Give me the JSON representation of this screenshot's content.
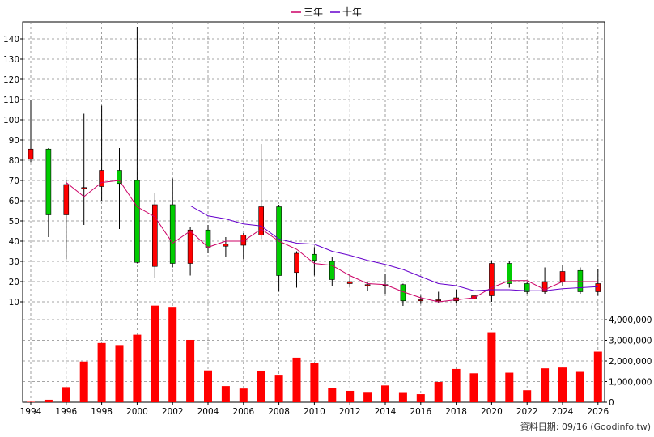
{
  "legend": [
    {
      "label": "三年",
      "color": "#cc0066"
    },
    {
      "label": "十年",
      "color": "#6600cc"
    }
  ],
  "credit": "資料日期: 09/16 (Goodinfo.tw)",
  "chart_data": {
    "type": "candlestick+volume",
    "x_ticks": [
      "1994",
      "1996",
      "1998",
      "2000",
      "2002",
      "2004",
      "2006",
      "2008",
      "2010",
      "2012",
      "2014",
      "2016",
      "2018",
      "2020",
      "2022",
      "2024",
      "2026"
    ],
    "price_axis": {
      "ticks": [
        10,
        20,
        30,
        40,
        50,
        60,
        70,
        80,
        90,
        100,
        110,
        120,
        130,
        140
      ],
      "range": [
        0,
        148
      ]
    },
    "volume_axis": {
      "ticks": [
        0,
        1000000,
        2000000,
        3000000,
        4000000
      ],
      "labels": [
        "0",
        "1,000,000",
        "2,000,000",
        "3,000,000",
        "4,000,000"
      ],
      "range": [
        0,
        4600000
      ]
    },
    "grid": true,
    "legend_position": "top-center",
    "candles": [
      {
        "year": 1994,
        "open": 80.5,
        "close": 85.5,
        "high": 110,
        "low": 79,
        "color": "red"
      },
      {
        "year": 1995,
        "open": 85.5,
        "close": 53,
        "high": 86,
        "low": 42,
        "color": "green"
      },
      {
        "year": 1996,
        "open": 53,
        "close": 68,
        "high": 70,
        "low": 31,
        "color": "red"
      },
      {
        "year": 1997,
        "open": 66,
        "close": 66.5,
        "high": 103,
        "low": 48,
        "color": "red"
      },
      {
        "year": 1998,
        "open": 67,
        "close": 75,
        "high": 107,
        "low": 60,
        "color": "red"
      },
      {
        "year": 1999,
        "open": 75,
        "close": 68.5,
        "high": 86,
        "low": 46,
        "color": "green"
      },
      {
        "year": 2000,
        "open": 70,
        "close": 29.5,
        "high": 146,
        "low": 29,
        "color": "green"
      },
      {
        "year": 2001,
        "open": 27.5,
        "close": 58,
        "high": 64,
        "low": 22,
        "color": "red"
      },
      {
        "year": 2002,
        "open": 58,
        "close": 29,
        "high": 71,
        "low": 27,
        "color": "green"
      },
      {
        "year": 2003,
        "open": 29,
        "close": 45.5,
        "high": 47,
        "low": 23,
        "color": "red"
      },
      {
        "year": 2004,
        "open": 45.5,
        "close": 37,
        "high": 48,
        "low": 34,
        "color": "green"
      },
      {
        "year": 2005,
        "open": 37.5,
        "close": 38.5,
        "high": 42,
        "low": 32,
        "color": "red"
      },
      {
        "year": 2006,
        "open": 38,
        "close": 43,
        "high": 44,
        "low": 31,
        "color": "red"
      },
      {
        "year": 2007,
        "open": 43,
        "close": 57,
        "high": 88,
        "low": 41,
        "color": "red"
      },
      {
        "year": 2008,
        "open": 57,
        "close": 23,
        "high": 58,
        "low": 15,
        "color": "green"
      },
      {
        "year": 2009,
        "open": 24.5,
        "close": 34,
        "high": 35,
        "low": 17,
        "color": "red"
      },
      {
        "year": 2010,
        "open": 33.5,
        "close": 30.5,
        "high": 37,
        "low": 23,
        "color": "green"
      },
      {
        "year": 2011,
        "open": 30,
        "close": 21,
        "high": 32,
        "low": 18,
        "color": "green"
      },
      {
        "year": 2012,
        "open": 19,
        "close": 20,
        "high": 24,
        "low": 17,
        "color": "red"
      },
      {
        "year": 2013,
        "open": 18.5,
        "close": 18,
        "high": 20,
        "low": 15.5,
        "color": "red"
      },
      {
        "year": 2014,
        "open": 18.5,
        "close": 18.5,
        "high": 24,
        "low": 14,
        "color": "red"
      },
      {
        "year": 2015,
        "open": 18.5,
        "close": 10.5,
        "high": 19,
        "low": 8,
        "color": "green"
      },
      {
        "year": 2016,
        "open": 10.5,
        "close": 11,
        "high": 13,
        "low": 9,
        "color": "red"
      },
      {
        "year": 2017,
        "open": 11,
        "close": 10.5,
        "high": 15,
        "low": 9.5,
        "color": "red"
      },
      {
        "year": 2018,
        "open": 10.5,
        "close": 12,
        "high": 16,
        "low": 9.5,
        "color": "red"
      },
      {
        "year": 2019,
        "open": 11.5,
        "close": 13,
        "high": 15,
        "low": 10.5,
        "color": "red"
      },
      {
        "year": 2020,
        "open": 13,
        "close": 29,
        "high": 30,
        "low": 10,
        "color": "red"
      },
      {
        "year": 2021,
        "open": 29,
        "close": 19,
        "high": 30,
        "low": 17,
        "color": "green"
      },
      {
        "year": 2022,
        "open": 19,
        "close": 15,
        "high": 20,
        "low": 14,
        "color": "green"
      },
      {
        "year": 2023,
        "open": 15,
        "close": 20,
        "high": 27,
        "low": 14,
        "color": "red"
      },
      {
        "year": 2024,
        "open": 20,
        "close": 25,
        "high": 28,
        "low": 18,
        "color": "red"
      },
      {
        "year": 2025,
        "open": 25.5,
        "close": 15,
        "high": 27,
        "low": 14,
        "color": "green"
      },
      {
        "year": 2026,
        "open": 15,
        "close": 19,
        "high": 26,
        "low": 13,
        "color": "red"
      }
    ],
    "ma3": {
      "name": "三年",
      "years": [
        1996,
        1997,
        1998,
        1999,
        2000,
        2001,
        2002,
        2003,
        2004,
        2005,
        2006,
        2007,
        2008,
        2009,
        2010,
        2011,
        2012,
        2013,
        2014,
        2015,
        2016,
        2017,
        2018,
        2019,
        2020,
        2021,
        2022,
        2023,
        2024,
        2025,
        2026
      ],
      "values": [
        69,
        62,
        69,
        70,
        57,
        52,
        39,
        45,
        37,
        40,
        40,
        46,
        40,
        36,
        29,
        28,
        23,
        19,
        18.5,
        15,
        12,
        10,
        11,
        12,
        17,
        20.5,
        20.5,
        16,
        20,
        20,
        20
      ]
    },
    "ma10": {
      "name": "十年",
      "years": [
        2003,
        2004,
        2005,
        2006,
        2007,
        2008,
        2009,
        2010,
        2011,
        2012,
        2013,
        2014,
        2015,
        2016,
        2017,
        2018,
        2019,
        2020,
        2021,
        2022,
        2023,
        2024,
        2025,
        2026
      ],
      "values": [
        57.5,
        52.5,
        51,
        48.5,
        47.5,
        41,
        39,
        38.5,
        35,
        33,
        30.5,
        28.5,
        26,
        22.5,
        19,
        18,
        15.5,
        16,
        16,
        15.5,
        15.5,
        16.5,
        17,
        17.5
      ]
    },
    "volume": {
      "years": [
        1994,
        1995,
        1996,
        1997,
        1998,
        1999,
        2000,
        2001,
        2002,
        2003,
        2004,
        2005,
        2006,
        2007,
        2008,
        2009,
        2010,
        2011,
        2012,
        2013,
        2014,
        2015,
        2016,
        2017,
        2018,
        2019,
        2020,
        2021,
        2022,
        2023,
        2024,
        2025,
        2026
      ],
      "values": [
        20000,
        120000,
        730000,
        1970000,
        2870000,
        2770000,
        3270000,
        4680000,
        4620000,
        3020000,
        1540000,
        780000,
        660000,
        1530000,
        1290000,
        2160000,
        1920000,
        670000,
        550000,
        460000,
        810000,
        450000,
        390000,
        980000,
        1610000,
        1400000,
        3390000,
        1430000,
        580000,
        1640000,
        1680000,
        1470000,
        2450000
      ]
    }
  }
}
